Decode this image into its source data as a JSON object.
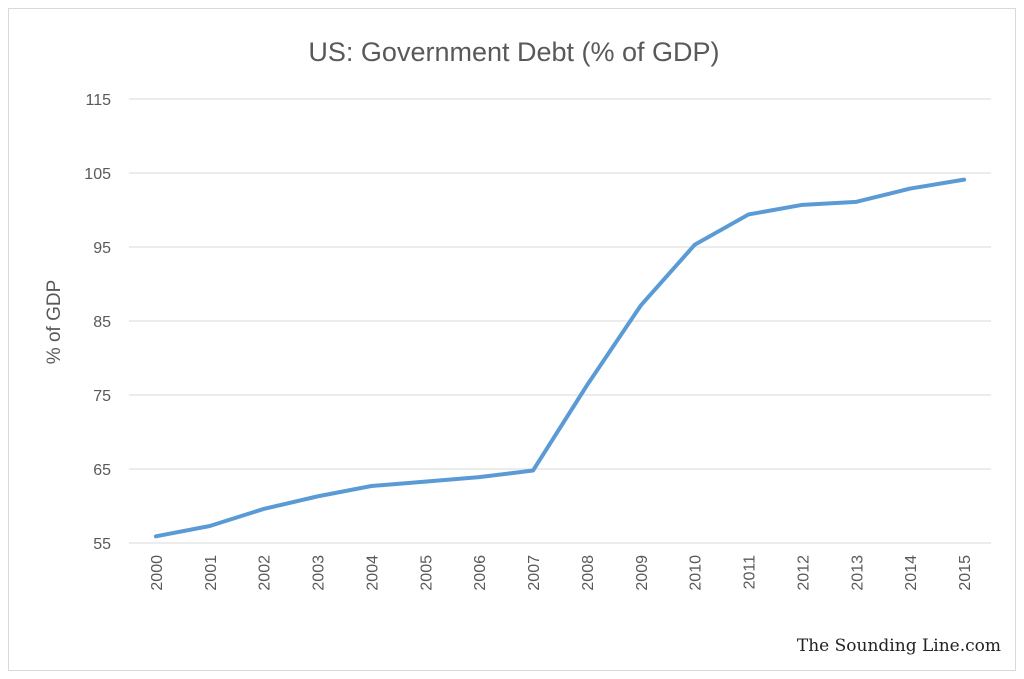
{
  "chart_data": {
    "type": "line",
    "title": "US: Government Debt (% of GDP)",
    "xlabel": "",
    "ylabel": "% of GDP",
    "categories": [
      "2000",
      "2001",
      "2002",
      "2003",
      "2004",
      "2005",
      "2006",
      "2007",
      "2008",
      "2009",
      "2010",
      "2011",
      "2012",
      "2013",
      "2014",
      "2015"
    ],
    "series": [
      {
        "name": "",
        "values": [
          55.9,
          57.3,
          59.6,
          61.3,
          62.7,
          63.3,
          63.9,
          64.8,
          76.3,
          87.1,
          95.3,
          99.4,
          100.7,
          101.1,
          102.9,
          104.1
        ]
      }
    ],
    "ylim": [
      55,
      115
    ],
    "yticks": [
      55,
      65,
      75,
      85,
      95,
      105,
      115
    ],
    "grid": true,
    "legend": "none",
    "colors": {
      "series": "#5b9bd5",
      "grid": "#d9d9d9",
      "text": "#595959"
    }
  },
  "source": "The Sounding Line.com"
}
